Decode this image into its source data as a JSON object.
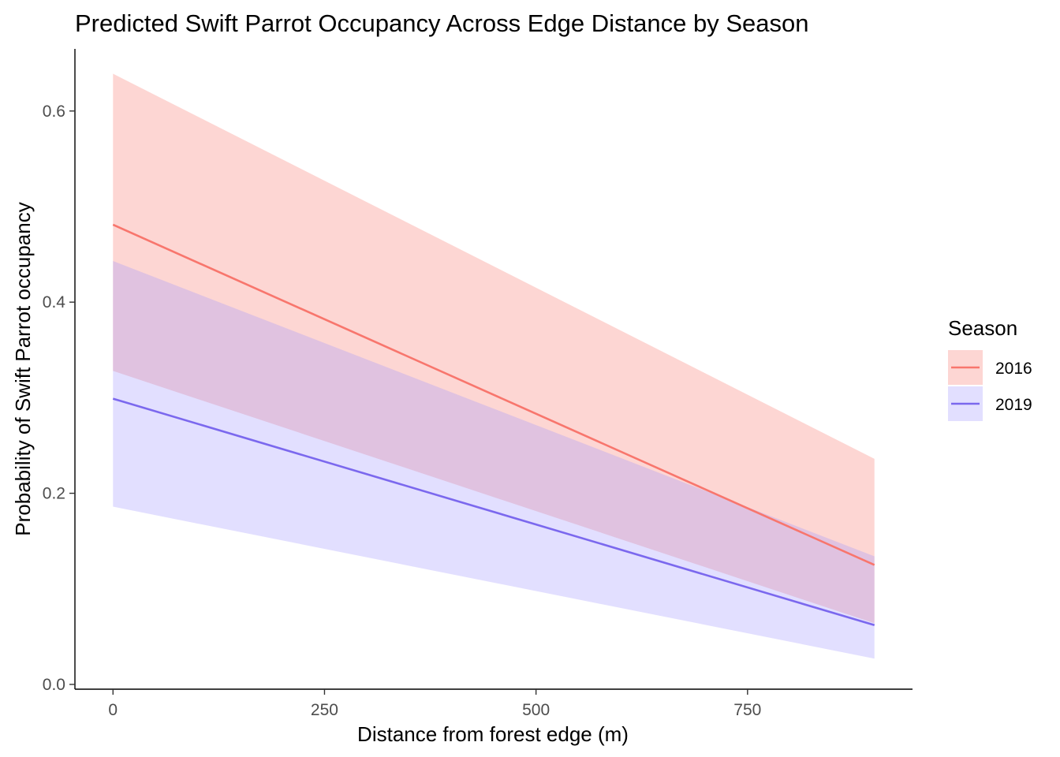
{
  "chart_data": {
    "type": "line",
    "title": "Predicted Swift Parrot Occupancy Across Edge Distance by Season",
    "xlabel": "Distance from forest edge (m)",
    "ylabel": "Probability of Swift Parrot occupancy",
    "xlim": [
      -45,
      945
    ],
    "ylim": [
      -0.005,
      0.665
    ],
    "x_ticks": [
      0,
      250,
      500,
      750
    ],
    "x_tick_labels": [
      "0",
      "250",
      "500",
      "750"
    ],
    "y_ticks": [
      0.0,
      0.2,
      0.4,
      0.6
    ],
    "y_tick_labels": [
      "0.0",
      "0.2",
      "0.4",
      "0.6"
    ],
    "grid": false,
    "legend": {
      "title": "Season",
      "placement": "right"
    },
    "series": [
      {
        "name": "2016",
        "color": "#F8766D",
        "ribbon_color": "#F8766D",
        "x": [
          0,
          900
        ],
        "values": [
          0.481,
          0.125
        ],
        "lower": [
          0.328,
          0.064
        ],
        "upper": [
          0.639,
          0.236
        ]
      },
      {
        "name": "2019",
        "color": "#7B68EE",
        "ribbon_color": "#A094FF",
        "x": [
          0,
          900
        ],
        "values": [
          0.299,
          0.062
        ],
        "lower": [
          0.186,
          0.027
        ],
        "upper": [
          0.443,
          0.134
        ]
      }
    ]
  }
}
